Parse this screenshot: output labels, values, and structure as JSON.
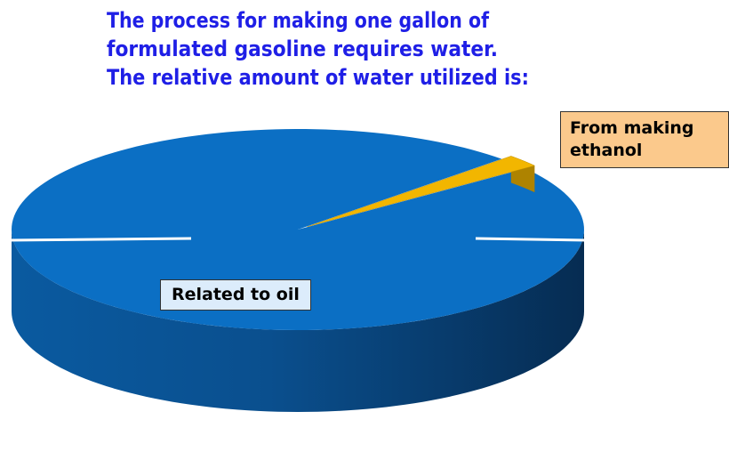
{
  "chart_data": {
    "type": "pie",
    "title": [
      "The process for making one gallon of",
      "formulated gasoline requires water.",
      "The relative amount of water utilized is:"
    ],
    "categories": [
      "Related to oil",
      "From making ethanol"
    ],
    "values": [
      98,
      2
    ],
    "colors": [
      "#0b6fc4",
      "#f2b600"
    ],
    "title_color": "#1f1fe6"
  }
}
